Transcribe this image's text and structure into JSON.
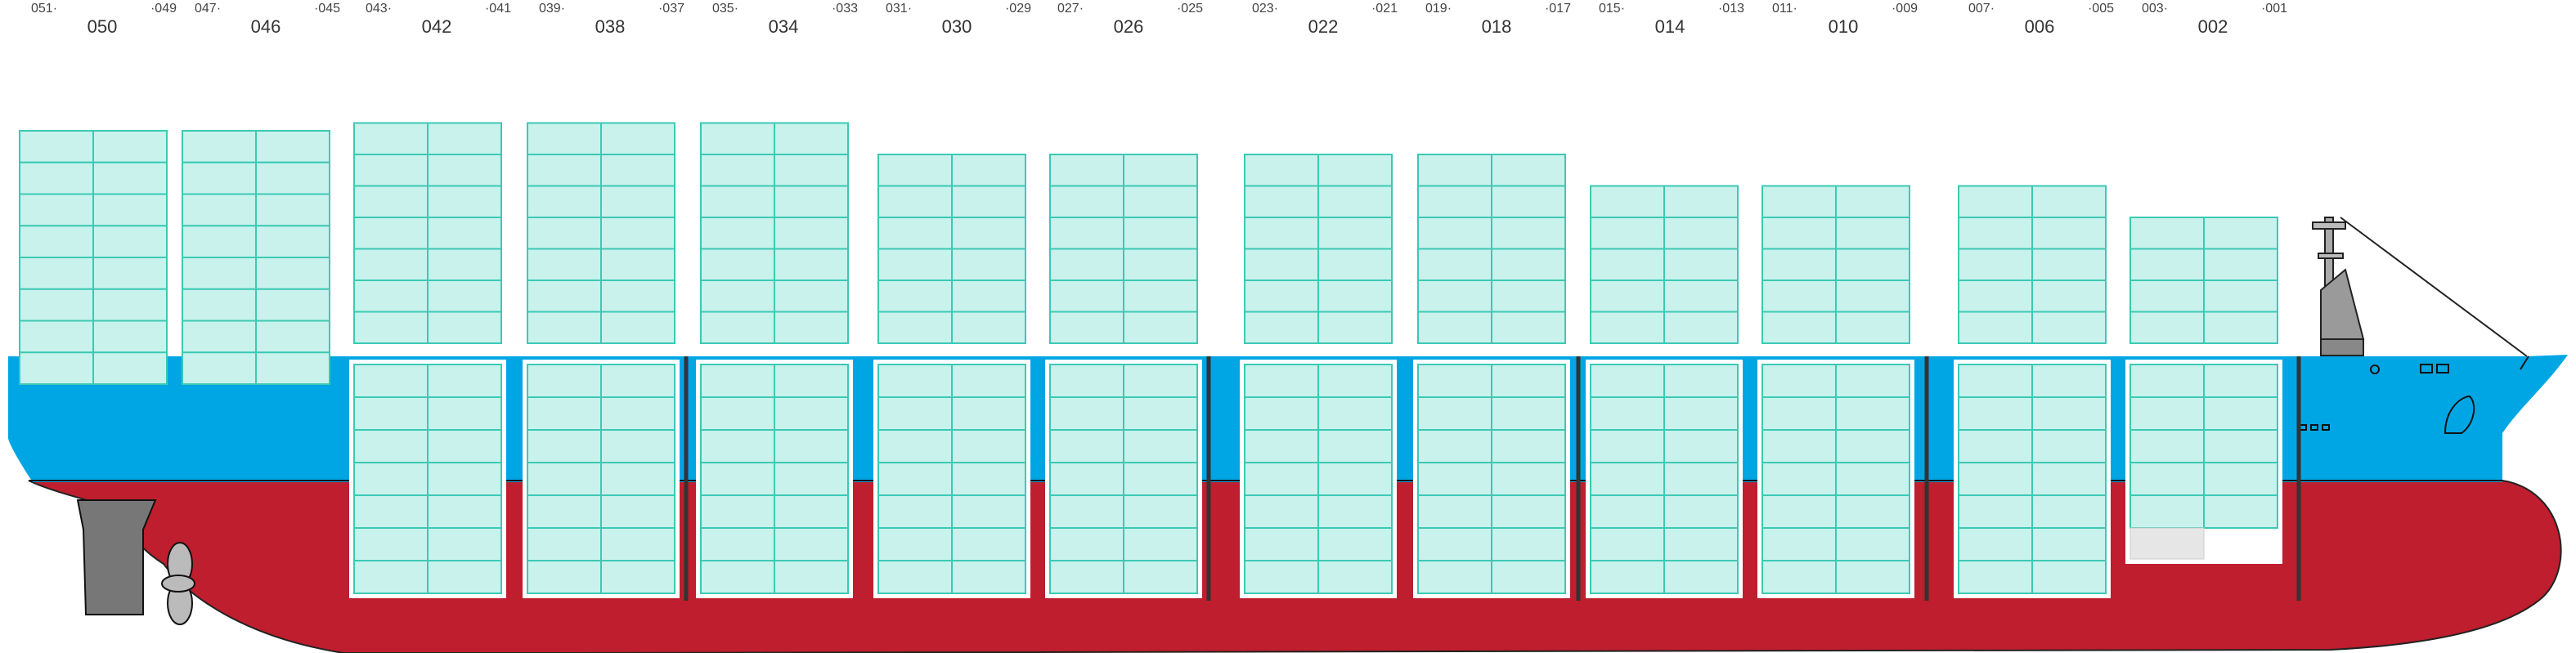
{
  "diagram": {
    "bays": [
      {
        "aft": "051",
        "mid": "050",
        "fwd": "049"
      },
      {
        "aft": "047",
        "mid": "046",
        "fwd": "045"
      },
      {
        "aft": "043",
        "mid": "042",
        "fwd": "041"
      },
      {
        "aft": "039",
        "mid": "038",
        "fwd": "037"
      },
      {
        "aft": "035",
        "mid": "034",
        "fwd": "033"
      },
      {
        "aft": "031",
        "mid": "030",
        "fwd": "029"
      },
      {
        "aft": "027",
        "mid": "026",
        "fwd": "025"
      },
      {
        "aft": "023",
        "mid": "022",
        "fwd": "021"
      },
      {
        "aft": "019",
        "mid": "018",
        "fwd": "017"
      },
      {
        "aft": "015",
        "mid": "014",
        "fwd": "013"
      },
      {
        "aft": "011",
        "mid": "010",
        "fwd": "009"
      },
      {
        "aft": "007",
        "mid": "006",
        "fwd": "005"
      },
      {
        "aft": "003",
        "mid": "002",
        "fwd": "001"
      }
    ],
    "deck_stacks_tiers": [
      8,
      8,
      7,
      7,
      7,
      6,
      6,
      6,
      6,
      5,
      5,
      5,
      4
    ],
    "hold_tiers": 7,
    "colors": {
      "hull_top": "#00a6e4",
      "hull_bottom": "#be1e2d",
      "container_fill": "#c9f2ec",
      "container_line": "#3cc9b4",
      "bulkhead": "#333333",
      "rudder": "#777777",
      "propeller": "#bbbbbb",
      "bridge": "#9a9a9a"
    }
  }
}
